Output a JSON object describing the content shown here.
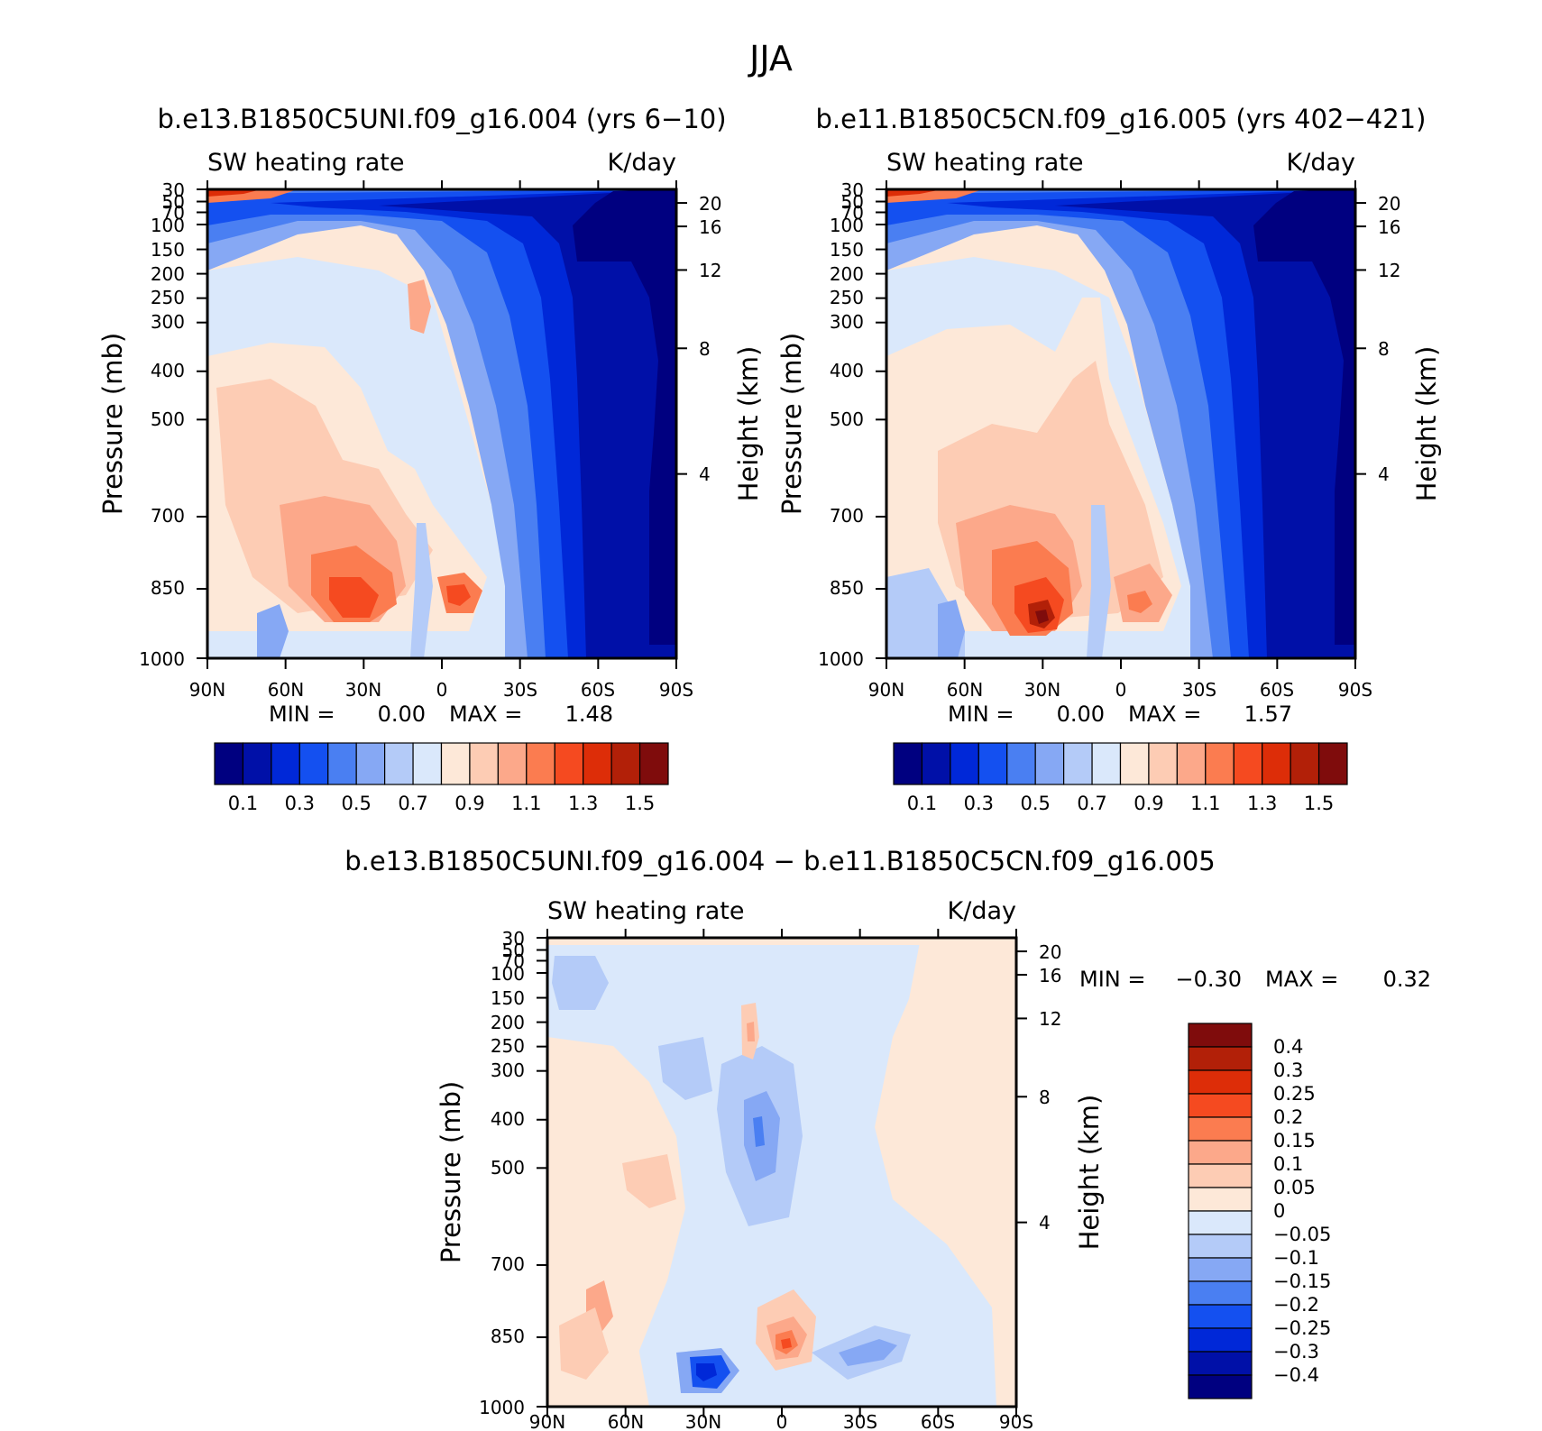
{
  "page": {
    "title": "JJA"
  },
  "chart_data": [
    {
      "type": "heatmap",
      "panel": "top-left",
      "title": "b.e13.B1850C5UNI.f09_g16.004 (yrs 6-10)",
      "subtitle_left": "SW heating rate",
      "subtitle_right": "K/day",
      "ylabel": "Pressure (mb)",
      "y2label": "Height (km)",
      "x_ticks": [
        "90N",
        "60N",
        "30N",
        "0",
        "30S",
        "60S",
        "90S"
      ],
      "y_ticks": [
        "30",
        "50",
        "70",
        "100",
        "150",
        "200",
        "250",
        "300",
        "400",
        "500",
        "700",
        "850",
        "1000"
      ],
      "y2_ticks": [
        "20",
        "16",
        "12",
        "8",
        "4"
      ],
      "min_text": "MIN =",
      "min_value": "0.00",
      "max_text": "MAX =",
      "max_value": "1.48",
      "colorbar": {
        "orientation": "horizontal",
        "labels": [
          "0.1",
          "0.3",
          "0.5",
          "0.7",
          "0.9",
          "1.1",
          "1.3",
          "1.5"
        ]
      }
    },
    {
      "type": "heatmap",
      "panel": "top-right",
      "title": "b.e11.B1850C5CN.f09_g16.005 (yrs 402-421)",
      "subtitle_left": "SW heating rate",
      "subtitle_right": "K/day",
      "ylabel": "Pressure (mb)",
      "y2label": "Height (km)",
      "x_ticks": [
        "90N",
        "60N",
        "30N",
        "0",
        "30S",
        "60S",
        "90S"
      ],
      "y_ticks": [
        "30",
        "50",
        "70",
        "100",
        "150",
        "200",
        "250",
        "300",
        "400",
        "500",
        "700",
        "850",
        "1000"
      ],
      "y2_ticks": [
        "20",
        "16",
        "12",
        "8",
        "4"
      ],
      "min_text": "MIN =",
      "min_value": "0.00",
      "max_text": "MAX =",
      "max_value": "1.57",
      "colorbar": {
        "orientation": "horizontal",
        "labels": [
          "0.1",
          "0.3",
          "0.5",
          "0.7",
          "0.9",
          "1.1",
          "1.3",
          "1.5"
        ]
      }
    },
    {
      "type": "heatmap",
      "panel": "bottom",
      "title": "b.e13.B1850C5UNI.f09_g16.004 - b.e11.B1850C5CN.f09_g16.005",
      "subtitle_left": "SW heating rate",
      "subtitle_right": "K/day",
      "ylabel": "Pressure (mb)",
      "y2label": "Height (km)",
      "x_ticks": [
        "90N",
        "60N",
        "30N",
        "0",
        "30S",
        "60S",
        "90S"
      ],
      "y_ticks": [
        "30",
        "50",
        "70",
        "100",
        "150",
        "200",
        "250",
        "300",
        "400",
        "500",
        "700",
        "850",
        "1000"
      ],
      "y2_ticks": [
        "20",
        "16",
        "12",
        "8",
        "4"
      ],
      "min_text": "MIN =",
      "min_value": "-0.30",
      "max_text": "MAX =",
      "max_value": "0.32",
      "colorbar": {
        "orientation": "vertical",
        "labels": [
          "0.4",
          "0.3",
          "0.25",
          "0.2",
          "0.15",
          "0.1",
          "0.05",
          "0",
          "-0.05",
          "-0.1",
          "-0.15",
          "-0.2",
          "-0.25",
          "-0.3",
          "-0.4"
        ]
      }
    }
  ],
  "colors": {
    "palette": [
      "#000080",
      "#0010a8",
      "#0028d8",
      "#1450f0",
      "#4a7ff2",
      "#86a8f4",
      "#b4cbf8",
      "#dae8fb",
      "#fde8d8",
      "#fdccb4",
      "#fca88a",
      "#fb7c50",
      "#f54a20",
      "#dd2d08",
      "#b22008",
      "#7f0c0c"
    ]
  }
}
